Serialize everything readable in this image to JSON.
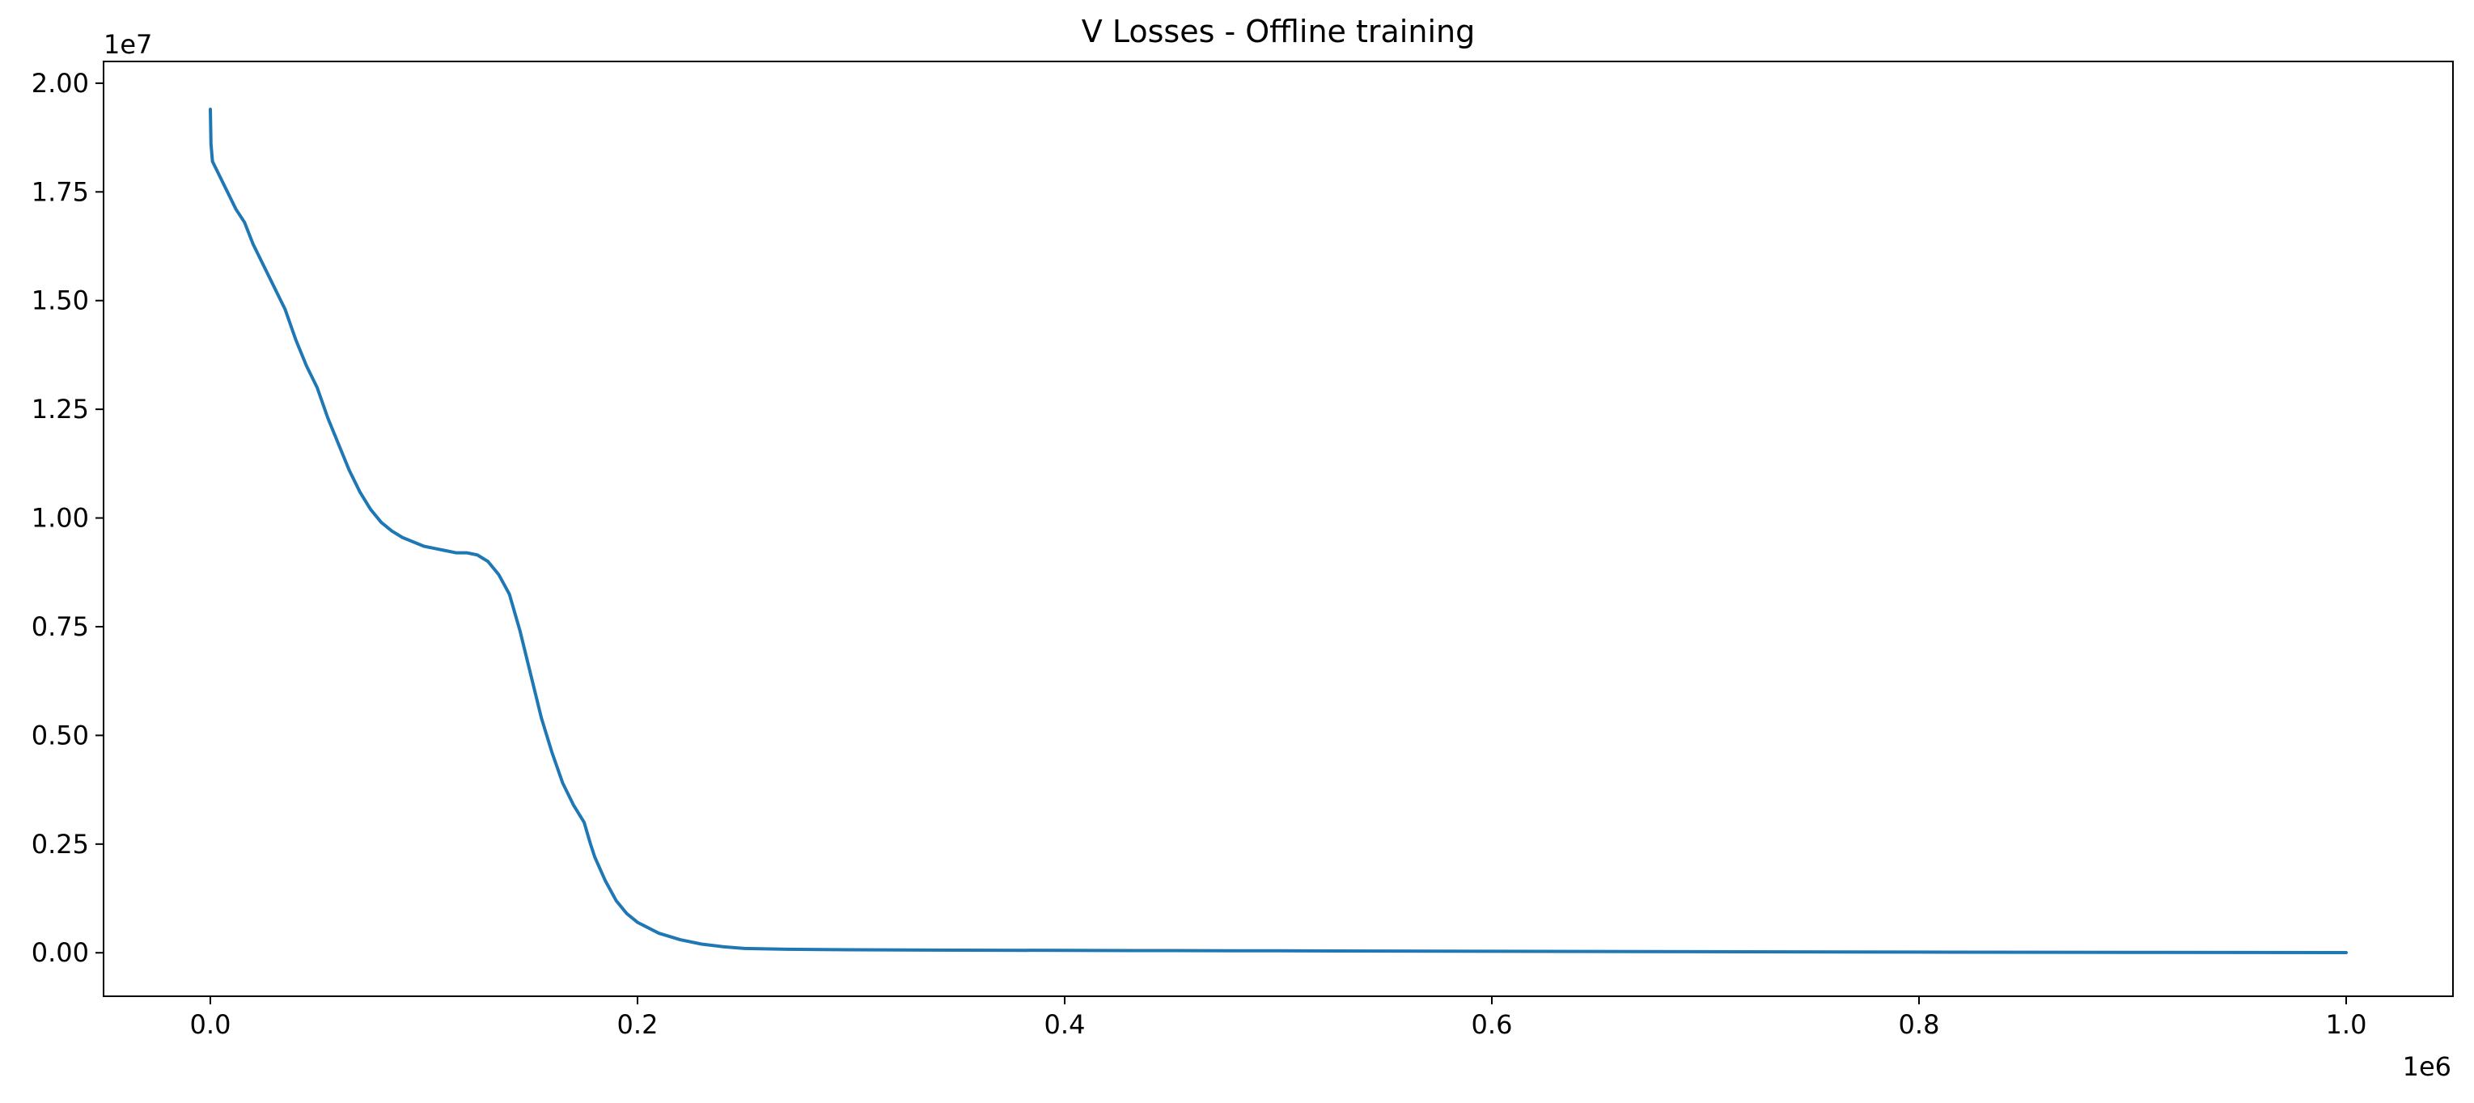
{
  "chart_data": {
    "type": "line",
    "title": "V Losses - Offline training",
    "xlabel": "",
    "ylabel": "",
    "x_offset_label": "1e6",
    "y_offset_label": "1e7",
    "x_scale": 1000000,
    "y_scale": 10000000,
    "xlim": [
      -50000,
      1050000
    ],
    "ylim": [
      -1000000,
      20500000
    ],
    "x_ticks": [
      0,
      200000,
      400000,
      600000,
      800000,
      1000000
    ],
    "x_tick_labels": [
      "0.0",
      "0.2",
      "0.4",
      "0.6",
      "0.8",
      "1.0"
    ],
    "y_ticks": [
      0,
      2500000,
      5000000,
      7500000,
      10000000,
      12500000,
      15000000,
      17500000,
      20000000
    ],
    "y_tick_labels": [
      "0.00",
      "0.25",
      "0.50",
      "0.75",
      "1.00",
      "1.25",
      "1.50",
      "1.75",
      "2.00"
    ],
    "grid": false,
    "line_color": "#1f77b4",
    "series": [
      {
        "x": [
          0,
          300,
          1000,
          3000,
          5000,
          8000,
          12000,
          16000,
          20000,
          25000,
          30000,
          35000,
          40000,
          45000,
          50000,
          55000,
          60000,
          65000,
          70000,
          75000,
          80000,
          85000,
          90000,
          95000,
          100000,
          105000,
          110000,
          115000,
          120000,
          125000,
          130000,
          135000,
          140000,
          145000,
          150000,
          155000,
          160000,
          165000,
          170000,
          175000,
          178000,
          180000,
          185000,
          190000,
          195000,
          200000,
          210000,
          220000,
          230000,
          240000,
          250000,
          270000,
          300000,
          350000,
          400000,
          450000,
          500000,
          600000,
          700000,
          800000,
          900000,
          1000000
        ],
        "y": [
          19400000,
          18600000,
          18200000,
          18000000,
          17800000,
          17500000,
          17100000,
          16800000,
          16300000,
          15800000,
          15300000,
          14800000,
          14100000,
          13500000,
          13000000,
          12300000,
          11700000,
          11100000,
          10600000,
          10200000,
          9900000,
          9700000,
          9550000,
          9450000,
          9350000,
          9300000,
          9250000,
          9200000,
          9200000,
          9150000,
          9000000,
          8700000,
          8250000,
          7400000,
          6400000,
          5400000,
          4600000,
          3900000,
          3400000,
          3000000,
          2500000,
          2200000,
          1650000,
          1200000,
          900000,
          700000,
          450000,
          300000,
          200000,
          140000,
          100000,
          80000,
          70000,
          60000,
          55000,
          50000,
          45000,
          35000,
          25000,
          15000,
          10000,
          5000
        ]
      }
    ]
  }
}
